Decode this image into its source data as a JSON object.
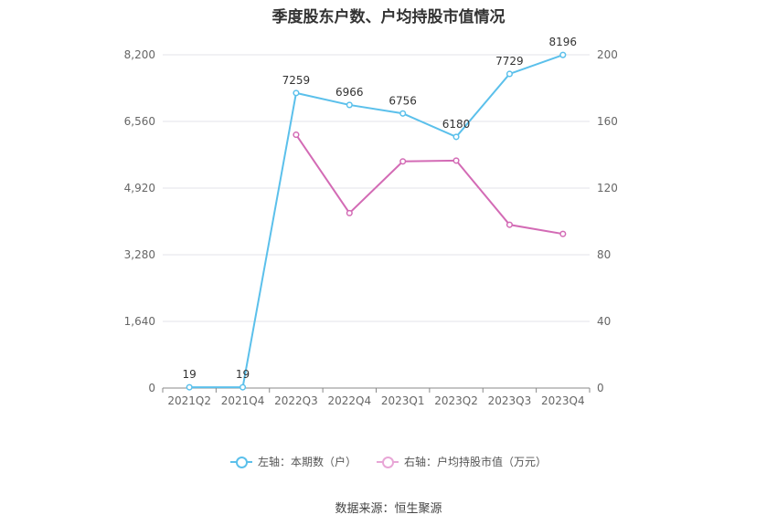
{
  "title": "季度股东户数、户均持股市值情况",
  "source": "数据来源：恒生聚源",
  "chart_data": {
    "type": "line",
    "title": "季度股东户数、户均持股市值情况",
    "categories": [
      "2021Q2",
      "2021Q4",
      "2022Q3",
      "2022Q4",
      "2023Q1",
      "2023Q2",
      "2023Q3",
      "2023Q4"
    ],
    "y_left": {
      "ticks": [
        0,
        1640,
        3280,
        4920,
        6560,
        8200
      ],
      "tick_labels": [
        "0",
        "1,640",
        "3,280",
        "4,920",
        "6,560",
        "8,200"
      ],
      "range": [
        0,
        8200
      ]
    },
    "y_right": {
      "ticks": [
        0,
        40,
        80,
        120,
        160,
        200
      ],
      "tick_labels": [
        "0",
        "40",
        "80",
        "120",
        "160",
        "200"
      ],
      "range": [
        0,
        200
      ]
    },
    "grid": true,
    "legend_position": "bottom-center",
    "series": [
      {
        "name": "左轴：本期数（户）",
        "axis": "left",
        "color": "#5bc0eb",
        "values": [
          19,
          19,
          7259,
          6966,
          6756,
          6180,
          7729,
          8196
        ],
        "labels": [
          "19",
          "19",
          "7259",
          "6966",
          "6756",
          "6180",
          "7729",
          "8196"
        ]
      },
      {
        "name": "右轴：户均持股市值（万元）",
        "axis": "right",
        "color": "#d36bb5",
        "legend_color": "#e8a6d6",
        "values": [
          null,
          null,
          152,
          105,
          136,
          136.5,
          98,
          92.5
        ]
      }
    ]
  }
}
